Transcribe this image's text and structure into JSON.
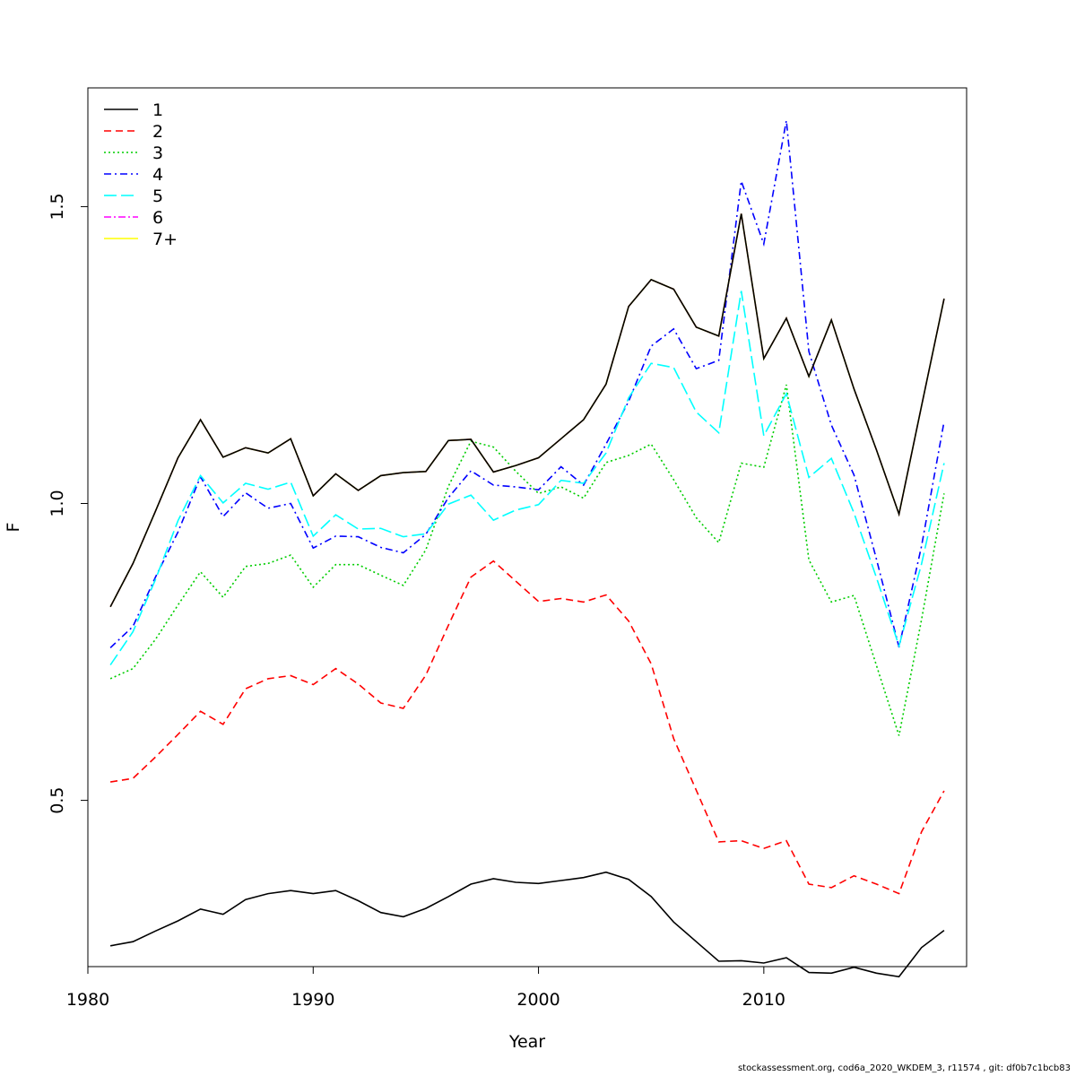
{
  "chart_data": {
    "type": "line",
    "title": "",
    "xlabel": "Year",
    "ylabel": "F",
    "xlim": [
      1980,
      2019
    ],
    "ylim": [
      0.22,
      1.7
    ],
    "x_ticks": [
      1980,
      1990,
      2000,
      2010
    ],
    "y_ticks": [
      0.5,
      1.0,
      1.5
    ],
    "y_tick_labels": [
      "0.5",
      "1.0",
      "1.5"
    ],
    "grid": false,
    "legend_position": "top-left",
    "x": [
      1981,
      1982,
      1983,
      1984,
      1985,
      1986,
      1987,
      1988,
      1989,
      1990,
      1991,
      1992,
      1993,
      1994,
      1995,
      1996,
      1997,
      1998,
      1999,
      2000,
      2001,
      2002,
      2003,
      2004,
      2005,
      2006,
      2007,
      2008,
      2009,
      2010,
      2011,
      2012,
      2013,
      2014,
      2015,
      2016,
      2017,
      2018
    ],
    "series": [
      {
        "name": "1",
        "color": "#000000",
        "dash": "",
        "values": [
          0.255,
          0.262,
          0.28,
          0.297,
          0.317,
          0.308,
          0.333,
          0.343,
          0.348,
          0.343,
          0.348,
          0.331,
          0.311,
          0.304,
          0.318,
          0.338,
          0.359,
          0.368,
          0.362,
          0.36,
          0.365,
          0.37,
          0.379,
          0.367,
          0.338,
          0.295,
          0.262,
          0.229,
          0.23,
          0.226,
          0.235,
          0.21,
          0.209,
          0.219,
          0.209,
          0.203,
          0.252,
          0.281
        ]
      },
      {
        "name": "2",
        "color": "#ff0000",
        "dash": "8,5",
        "values": [
          0.531,
          0.537,
          0.573,
          0.611,
          0.65,
          0.628,
          0.688,
          0.705,
          0.71,
          0.695,
          0.722,
          0.696,
          0.664,
          0.655,
          0.711,
          0.795,
          0.876,
          0.903,
          0.869,
          0.835,
          0.84,
          0.834,
          0.846,
          0.802,
          0.73,
          0.604,
          0.517,
          0.43,
          0.432,
          0.419,
          0.432,
          0.359,
          0.353,
          0.373,
          0.359,
          0.343,
          0.447,
          0.516
        ]
      },
      {
        "name": "3",
        "color": "#00cd00",
        "dash": "2,3",
        "values": [
          0.705,
          0.722,
          0.771,
          0.829,
          0.885,
          0.842,
          0.894,
          0.899,
          0.913,
          0.859,
          0.897,
          0.897,
          0.879,
          0.862,
          0.922,
          1.029,
          1.105,
          1.095,
          1.054,
          1.017,
          1.028,
          1.009,
          1.069,
          1.081,
          1.1,
          1.04,
          0.976,
          0.934,
          1.068,
          1.061,
          1.2,
          0.905,
          0.834,
          0.845,
          0.727,
          0.609,
          0.804,
          1.017
        ]
      },
      {
        "name": "4",
        "color": "#0000ff",
        "dash": "8,4,2,4",
        "values": [
          0.757,
          0.793,
          0.876,
          0.952,
          1.045,
          0.978,
          1.018,
          0.992,
          1.0,
          0.925,
          0.945,
          0.944,
          0.926,
          0.917,
          0.948,
          1.01,
          1.055,
          1.031,
          1.028,
          1.023,
          1.062,
          1.031,
          1.1,
          1.172,
          1.265,
          1.294,
          1.227,
          1.241,
          1.543,
          1.437,
          1.645,
          1.256,
          1.132,
          1.048,
          0.906,
          0.758,
          0.928,
          1.138
        ]
      },
      {
        "name": "5",
        "color": "#00ffff",
        "dash": "14,5",
        "values": [
          0.728,
          0.784,
          0.872,
          0.971,
          1.047,
          1.001,
          1.034,
          1.024,
          1.036,
          0.945,
          0.981,
          0.957,
          0.958,
          0.944,
          0.949,
          0.999,
          1.014,
          0.972,
          0.989,
          0.998,
          1.039,
          1.034,
          1.085,
          1.178,
          1.236,
          1.229,
          1.154,
          1.119,
          1.358,
          1.114,
          1.185,
          1.044,
          1.076,
          0.984,
          0.875,
          0.76,
          0.898,
          1.068
        ]
      },
      {
        "name": "6",
        "color": "#ff00ff",
        "dash": "8,3,2,3",
        "values": [
          0.826,
          0.899,
          0.987,
          1.077,
          1.141,
          1.078,
          1.094,
          1.085,
          1.109,
          1.013,
          1.05,
          1.022,
          1.047,
          1.052,
          1.054,
          1.106,
          1.108,
          1.053,
          1.064,
          1.077,
          1.109,
          1.141,
          1.201,
          1.332,
          1.377,
          1.361,
          1.297,
          1.282,
          1.488,
          1.244,
          1.312,
          1.214,
          1.309,
          1.193,
          1.09,
          0.982,
          1.164,
          1.345
        ]
      },
      {
        "name": "7+",
        "color": "#ffff00",
        "dash": "",
        "values": [
          0.826,
          0.899,
          0.987,
          1.077,
          1.141,
          1.078,
          1.094,
          1.085,
          1.109,
          1.013,
          1.05,
          1.022,
          1.047,
          1.052,
          1.054,
          1.106,
          1.108,
          1.053,
          1.064,
          1.077,
          1.109,
          1.141,
          1.201,
          1.332,
          1.377,
          1.361,
          1.297,
          1.282,
          1.488,
          1.244,
          1.312,
          1.214,
          1.309,
          1.193,
          1.09,
          0.982,
          1.164,
          1.345
        ]
      }
    ],
    "overlay_series_index": 6,
    "overlay_color": "#000000"
  },
  "footer": {
    "credit": "stockassessment.org, cod6a_2020_WKDEM_3, r11574 , git: df0b7c1bcb83"
  }
}
